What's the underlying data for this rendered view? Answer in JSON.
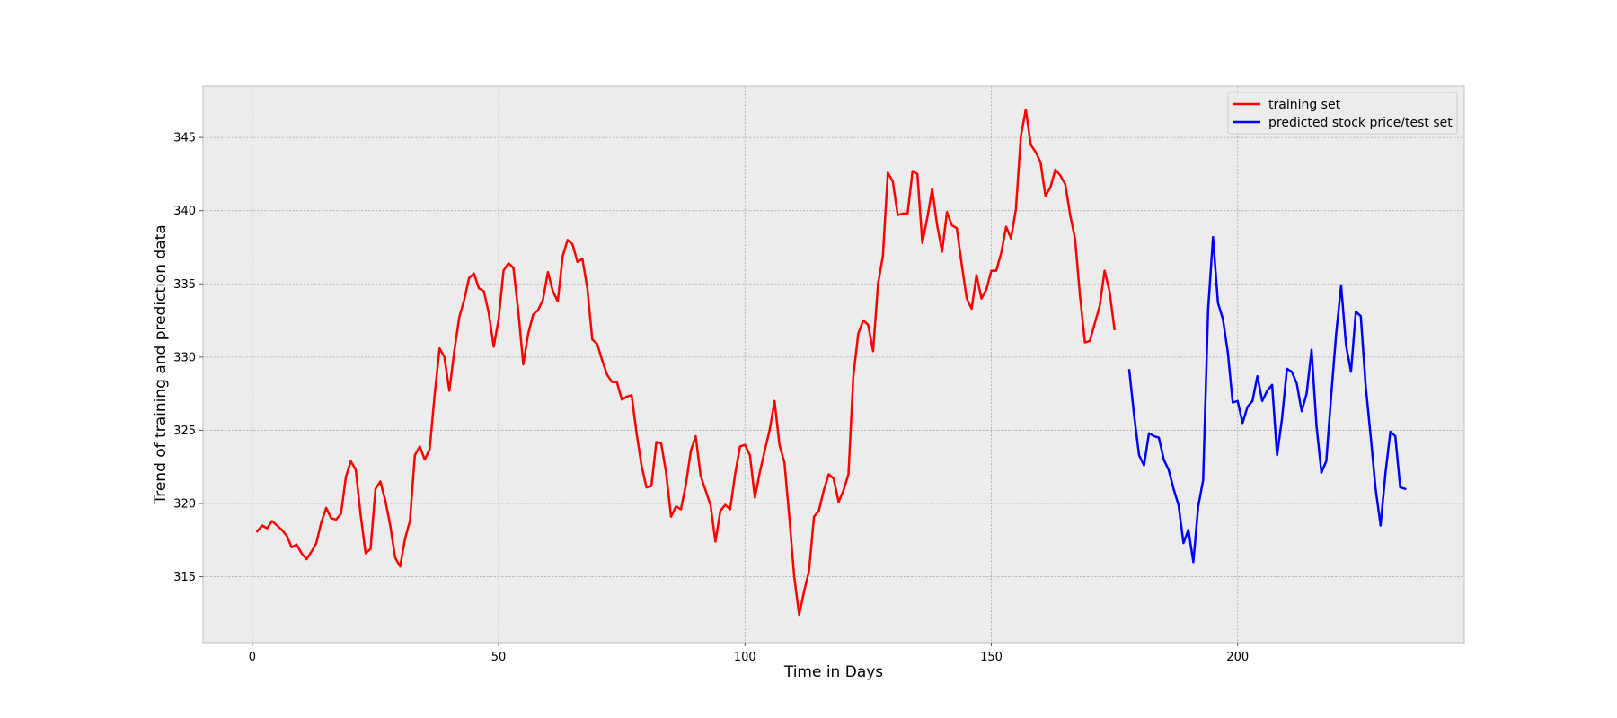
{
  "chart_data": {
    "type": "line",
    "title": "",
    "xlabel": "Time in Days",
    "ylabel": "Trend of training and prediction data",
    "xlim": [
      -10,
      246
    ],
    "ylim": [
      310.5,
      348.5
    ],
    "xticks": [
      0,
      50,
      100,
      150,
      200
    ],
    "yticks": [
      315,
      320,
      325,
      330,
      335,
      340,
      345
    ],
    "grid": true,
    "legend_position": "top-right",
    "colors": {
      "plot_background": "#ececec",
      "axes_edge": "#bcbcbc",
      "grid": "#b0b0b0"
    },
    "series": [
      {
        "name": "training set",
        "color": "#ff0000",
        "x_start": 1,
        "values": [
          318.1,
          318.5,
          318.3,
          318.8,
          318.5,
          318.2,
          317.8,
          317.0,
          317.2,
          316.6,
          316.2,
          316.7,
          317.3,
          318.7,
          319.7,
          319.0,
          318.9,
          319.3,
          321.8,
          322.9,
          322.3,
          319.2,
          316.6,
          316.9,
          321.0,
          321.5,
          320.2,
          318.5,
          316.3,
          315.7,
          317.6,
          318.8,
          323.3,
          323.9,
          323.0,
          323.7,
          327.4,
          330.6,
          330.0,
          327.7,
          330.4,
          332.7,
          333.9,
          335.4,
          335.7,
          334.7,
          334.5,
          333.0,
          330.7,
          332.6,
          335.9,
          336.4,
          336.1,
          333.1,
          329.5,
          331.6,
          332.9,
          333.2,
          333.9,
          335.8,
          334.5,
          333.8,
          336.9,
          338.0,
          337.7,
          336.5,
          336.7,
          334.7,
          331.2,
          330.9,
          329.8,
          328.8,
          328.3,
          328.3,
          327.1,
          327.3,
          327.4,
          324.8,
          322.6,
          321.1,
          321.2,
          324.2,
          324.1,
          322.1,
          319.1,
          319.8,
          319.6,
          321.3,
          323.6,
          324.6,
          321.9,
          320.9,
          319.9,
          317.4,
          319.5,
          319.9,
          319.6,
          322.0,
          323.9,
          324.0,
          323.3,
          320.4,
          322.1,
          323.6,
          325.0,
          327.0,
          324.0,
          322.8,
          319.1,
          315.0,
          312.4,
          314.0,
          315.4,
          319.1,
          319.5,
          320.9,
          322.0,
          321.7,
          320.1,
          320.9,
          322.0,
          328.7,
          331.6,
          332.5,
          332.2,
          330.4,
          335.0,
          336.9,
          342.6,
          342.0,
          339.7,
          339.8,
          339.8,
          342.7,
          342.5,
          337.8,
          339.5,
          341.5,
          339.0,
          337.2,
          339.9,
          339.0,
          338.8,
          336.3,
          334.0,
          333.3,
          335.6,
          334.0,
          334.6,
          335.9,
          335.9,
          337.1,
          338.9,
          338.1,
          340.1,
          345.1,
          346.9,
          344.5,
          344.0,
          343.3,
          341.0,
          341.6,
          342.8,
          342.4,
          341.8,
          339.7,
          338.1,
          334.2,
          331.0,
          331.1,
          332.3,
          333.5,
          335.9,
          334.5,
          331.9
        ]
      },
      {
        "name": "predicted stock price/test set",
        "color": "#0000ff",
        "x_start": 178,
        "values": [
          329.1,
          326.0,
          323.3,
          322.6,
          324.8,
          324.6,
          324.5,
          323.0,
          322.3,
          321.0,
          319.9,
          317.3,
          318.2,
          316.0,
          319.8,
          321.6,
          333.2,
          338.2,
          333.7,
          332.6,
          330.3,
          326.9,
          327.0,
          325.5,
          326.6,
          327.0,
          328.7,
          327.0,
          327.7,
          328.1,
          323.3,
          325.8,
          329.2,
          329.0,
          328.2,
          326.3,
          327.5,
          330.5,
          325.3,
          322.1,
          322.9,
          327.4,
          331.6,
          334.9,
          330.8,
          329.0,
          333.1,
          332.8,
          328.0,
          324.6,
          321.0,
          318.5,
          322.1,
          324.9,
          324.6,
          321.1,
          321.0
        ]
      }
    ]
  }
}
